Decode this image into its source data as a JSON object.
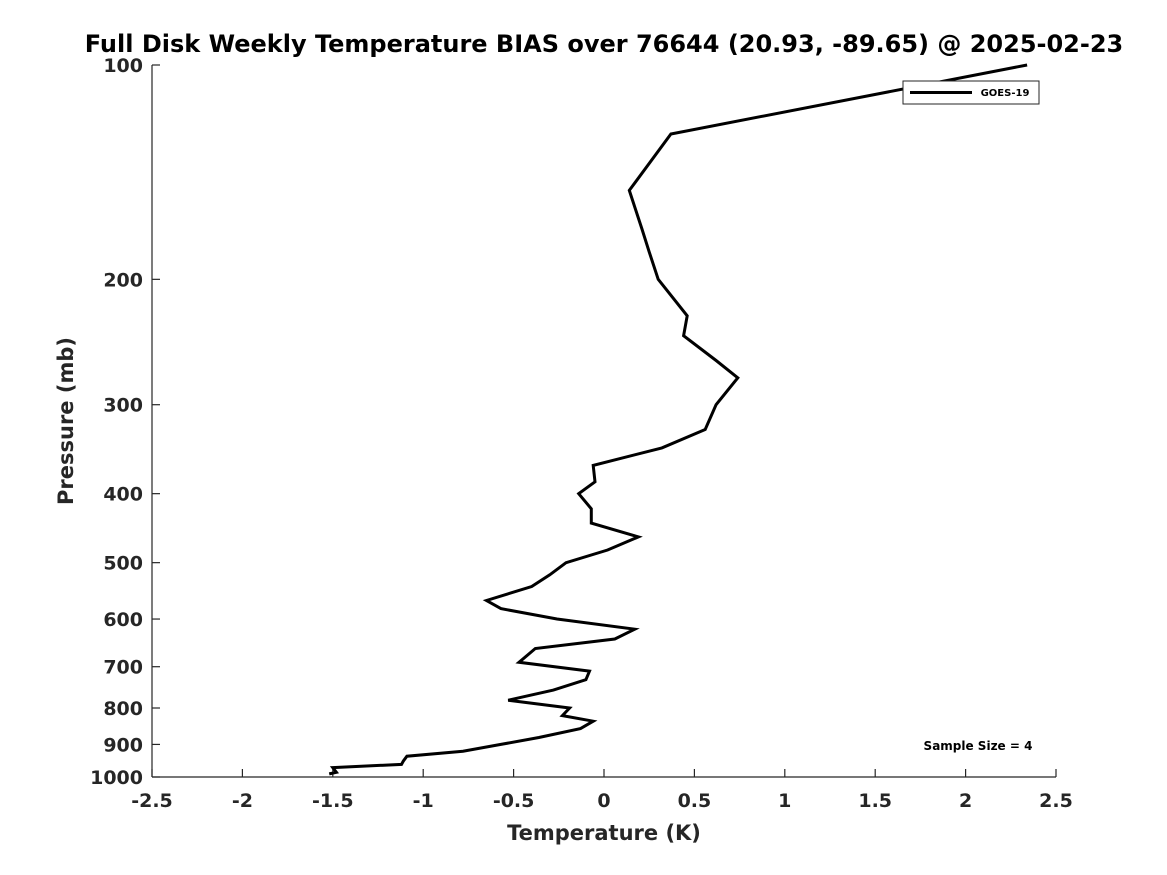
{
  "chart_data": {
    "type": "line",
    "title": "Full Disk Weekly Temperature BIAS over 76644 (20.93, -89.65) @ 2025-02-23",
    "xlabel": "Temperature (K)",
    "ylabel": "Pressure (mb)",
    "xlim": [
      -2.5,
      2.5
    ],
    "ylim": [
      100,
      1000
    ],
    "y_scale": "log",
    "y_reversed": true,
    "xticks": [
      "-2.5",
      "-2",
      "-1.5",
      "-1",
      "-0.5",
      "0",
      "0.5",
      "1",
      "1.5",
      "2",
      "2.5"
    ],
    "yticks": [
      "100",
      "200",
      "300",
      "400",
      "500",
      "600",
      "700",
      "800",
      "900",
      "1000"
    ],
    "grid": false,
    "legend_position": "top-right",
    "annotation": "Sample Size = 4",
    "series": [
      {
        "name": "GOES-19",
        "color": "#000000",
        "points": [
          [
            2.34,
            100
          ],
          [
            0.37,
            125
          ],
          [
            0.14,
            150
          ],
          [
            0.21,
            170
          ],
          [
            0.25,
            183
          ],
          [
            0.3,
            200
          ],
          [
            0.46,
            225
          ],
          [
            0.44,
            240
          ],
          [
            0.62,
            260
          ],
          [
            0.74,
            275
          ],
          [
            0.62,
            300
          ],
          [
            0.56,
            325
          ],
          [
            0.32,
            345
          ],
          [
            -0.06,
            365
          ],
          [
            -0.05,
            385
          ],
          [
            -0.14,
            400
          ],
          [
            -0.07,
            420
          ],
          [
            -0.07,
            440
          ],
          [
            0.19,
            460
          ],
          [
            0.02,
            480
          ],
          [
            -0.21,
            500
          ],
          [
            -0.3,
            520
          ],
          [
            -0.4,
            540
          ],
          [
            -0.65,
            565
          ],
          [
            -0.57,
            580
          ],
          [
            -0.26,
            600
          ],
          [
            0.17,
            620
          ],
          [
            0.06,
            640
          ],
          [
            -0.38,
            660
          ],
          [
            -0.47,
            690
          ],
          [
            -0.08,
            710
          ],
          [
            -0.1,
            730
          ],
          [
            -0.28,
            755
          ],
          [
            -0.53,
            780
          ],
          [
            -0.19,
            800
          ],
          [
            -0.23,
            820
          ],
          [
            -0.06,
            835
          ],
          [
            -0.13,
            855
          ],
          [
            -0.36,
            880
          ],
          [
            -0.57,
            900
          ],
          [
            -0.78,
            920
          ],
          [
            -1.09,
            935
          ],
          [
            -1.11,
            950
          ],
          [
            -1.12,
            960
          ],
          [
            -1.5,
            970
          ],
          [
            -1.48,
            985
          ],
          [
            -1.52,
            990
          ]
        ]
      }
    ]
  }
}
